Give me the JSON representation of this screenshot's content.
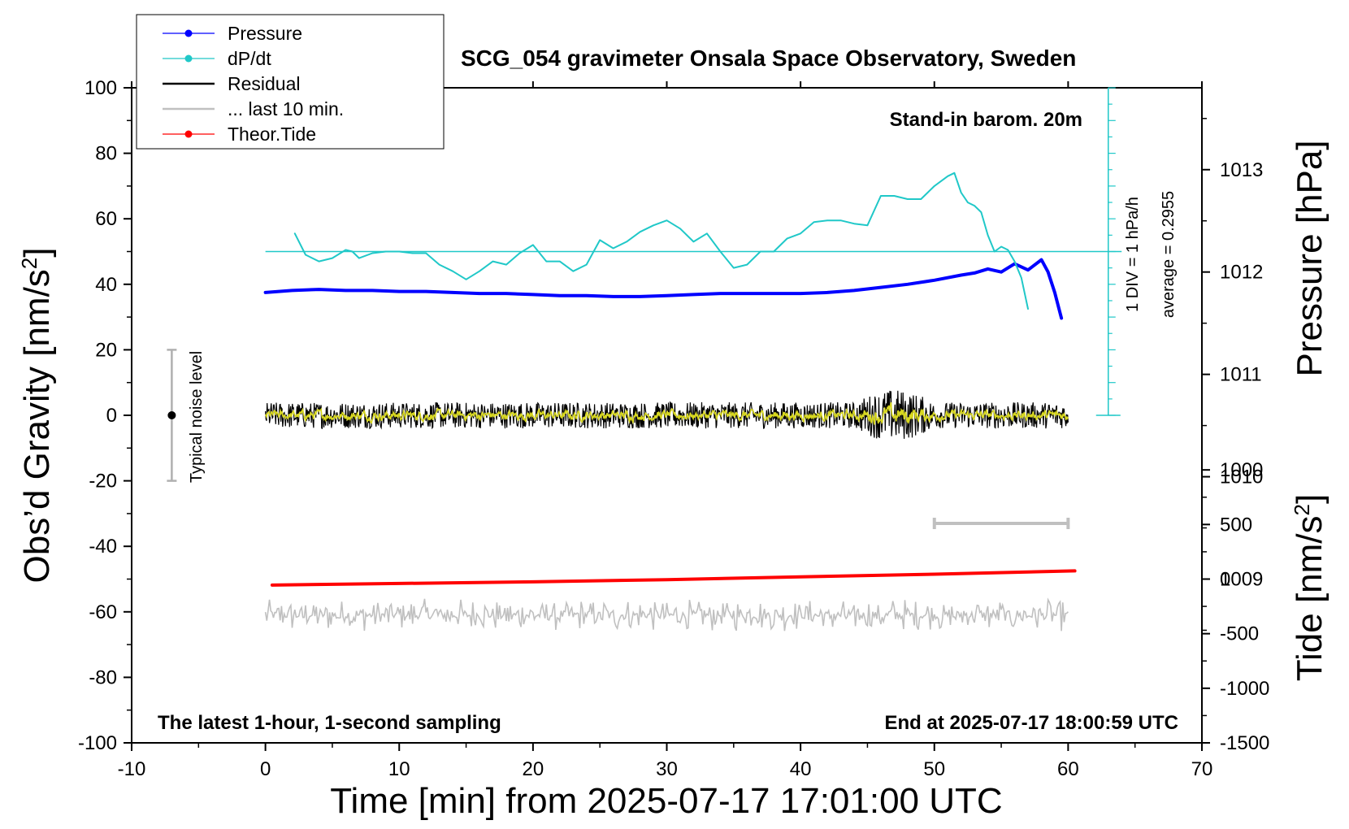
{
  "chart_data": {
    "type": "line",
    "title": "SCG_054 gravimeter Onsala Space Observatory, Sweden",
    "xlabel": "Time [min] from 2025-07-17 17:01:00 UTC",
    "ylabel_left": "Obs’d Gravity [nm/s",
    "ylabel_left_sup": "2",
    "ylabel_left_tail": "]",
    "ylabel_right_pressure": "Pressure [hPa]",
    "ylabel_right_tide": "Tide [nm/s",
    "ylabel_right_tide_sup": "2",
    "ylabel_right_tide_tail": "]",
    "xlim": [
      -10,
      70
    ],
    "ylim": [
      -100,
      100
    ],
    "pressure_ylim": [
      1007.4,
      1013.8
    ],
    "tide_ylim": [
      -1500,
      1500
    ],
    "x_ticks": [
      "-10",
      "0",
      "10",
      "20",
      "30",
      "40",
      "50",
      "60",
      "70"
    ],
    "y_ticks": [
      "-100",
      "-80",
      "-60",
      "-40",
      "-20",
      "0",
      "20",
      "40",
      "60",
      "80",
      "100"
    ],
    "pressure_ticks": [
      "1009",
      "1010",
      "1011",
      "1012",
      "1013"
    ],
    "tide_ticks": [
      "-1500",
      "-1000",
      "-500",
      "0",
      "500",
      "1000"
    ],
    "grid": false,
    "legend_position": "top-left",
    "legend": [
      {
        "name": "Pressure",
        "color": "#0000ff",
        "marker": true
      },
      {
        "name": "dP/dt",
        "color": "#20c8c8",
        "marker": true
      },
      {
        "name": "Residual",
        "color": "#000000",
        "marker": false
      },
      {
        "name": "... last 10 min.",
        "color": "#c0c0c0",
        "marker": false
      },
      {
        "name": "Theor.Tide",
        "color": "#ff0000",
        "marker": true
      }
    ],
    "annotations": {
      "barometer": "Stand-in barom. 20m",
      "sampling": "The latest 1-hour, 1-second sampling",
      "end_time": "End at 2025-07-17 18:00:59 UTC",
      "noise": "Typical noise level",
      "dpdt_scale": "1 DIV = 1 hPa/h",
      "dpdt_average": "average = 0.2955"
    },
    "noise_bar": {
      "x": -7,
      "center": 0,
      "half_range": 20
    },
    "last10_bar": {
      "x_start": 50,
      "x_end": 60,
      "y": -33
    },
    "series": [
      {
        "name": "Pressure",
        "axis": "pressure",
        "color": "#0000ff",
        "x": [
          0,
          2,
          4,
          6,
          8,
          10,
          12,
          14,
          16,
          18,
          20,
          22,
          24,
          26,
          28,
          30,
          32,
          34,
          36,
          38,
          40,
          42,
          44,
          46,
          48,
          50,
          52,
          53,
          54,
          55,
          56,
          57,
          58,
          58.5,
          59,
          59.5
        ],
        "values": [
          1011.8,
          1011.82,
          1011.83,
          1011.82,
          1011.82,
          1011.81,
          1011.81,
          1011.8,
          1011.79,
          1011.79,
          1011.78,
          1011.77,
          1011.77,
          1011.76,
          1011.76,
          1011.77,
          1011.78,
          1011.79,
          1011.79,
          1011.79,
          1011.79,
          1011.8,
          1011.82,
          1011.85,
          1011.88,
          1011.92,
          1011.97,
          1011.99,
          1012.03,
          1012.0,
          1012.08,
          1012.02,
          1012.12,
          1012.0,
          1011.8,
          1011.55
        ]
      },
      {
        "name": "dP/dt",
        "axis": "left",
        "color": "#20c8c8",
        "x": [
          2.2,
          3,
          4,
          5,
          6,
          6.5,
          7,
          8,
          9,
          10,
          11,
          12,
          13,
          14,
          15,
          16,
          17,
          18,
          19,
          20,
          21,
          22,
          23,
          24,
          25,
          26,
          27,
          28,
          29,
          30,
          31,
          32,
          33,
          34,
          35,
          36,
          37,
          38,
          39,
          40,
          41,
          42,
          43,
          44,
          45,
          46,
          47,
          48,
          49,
          50,
          51,
          51.5,
          52,
          52.5,
          53,
          53.5,
          54,
          54.5,
          55,
          55.5,
          56,
          56.5,
          57
        ],
        "values": [
          55.5,
          49,
          47,
          48,
          50.5,
          50,
          48,
          49.5,
          50,
          50,
          49.5,
          49.5,
          46,
          44,
          41.5,
          44,
          47,
          46,
          49.5,
          52,
          47,
          47,
          44,
          46,
          53.5,
          51,
          53,
          56,
          58,
          59.5,
          57,
          53,
          55.5,
          50,
          45,
          46,
          50,
          50,
          54,
          55.5,
          59,
          59.5,
          59.5,
          58.5,
          58,
          67,
          67,
          66,
          66,
          70,
          73,
          74,
          68,
          65,
          64,
          62,
          55,
          50,
          51.5,
          50.5,
          47,
          42,
          32.5
        ]
      },
      {
        "name": "Theor.Tide",
        "axis": "tide",
        "color": "#ff0000",
        "x": [
          0.5,
          10,
          20,
          30,
          40,
          50,
          60.5
        ],
        "values": [
          -55,
          -40,
          -25,
          -5,
          20,
          45,
          75
        ]
      }
    ],
    "residual": {
      "name": "Residual",
      "x_range": [
        0,
        60
      ],
      "baseline": 0,
      "amplitude_nm_s2": 4,
      "burst_window_min": [
        44,
        50
      ],
      "burst_amplitude_nm_s2": 8,
      "smoothed_color": "#d8d820"
    },
    "last10": {
      "name": "... last 10 min.",
      "color": "#c0c0c0",
      "x_range": [
        0,
        60
      ],
      "center": -61,
      "amplitude_nm_s2": 5
    }
  }
}
